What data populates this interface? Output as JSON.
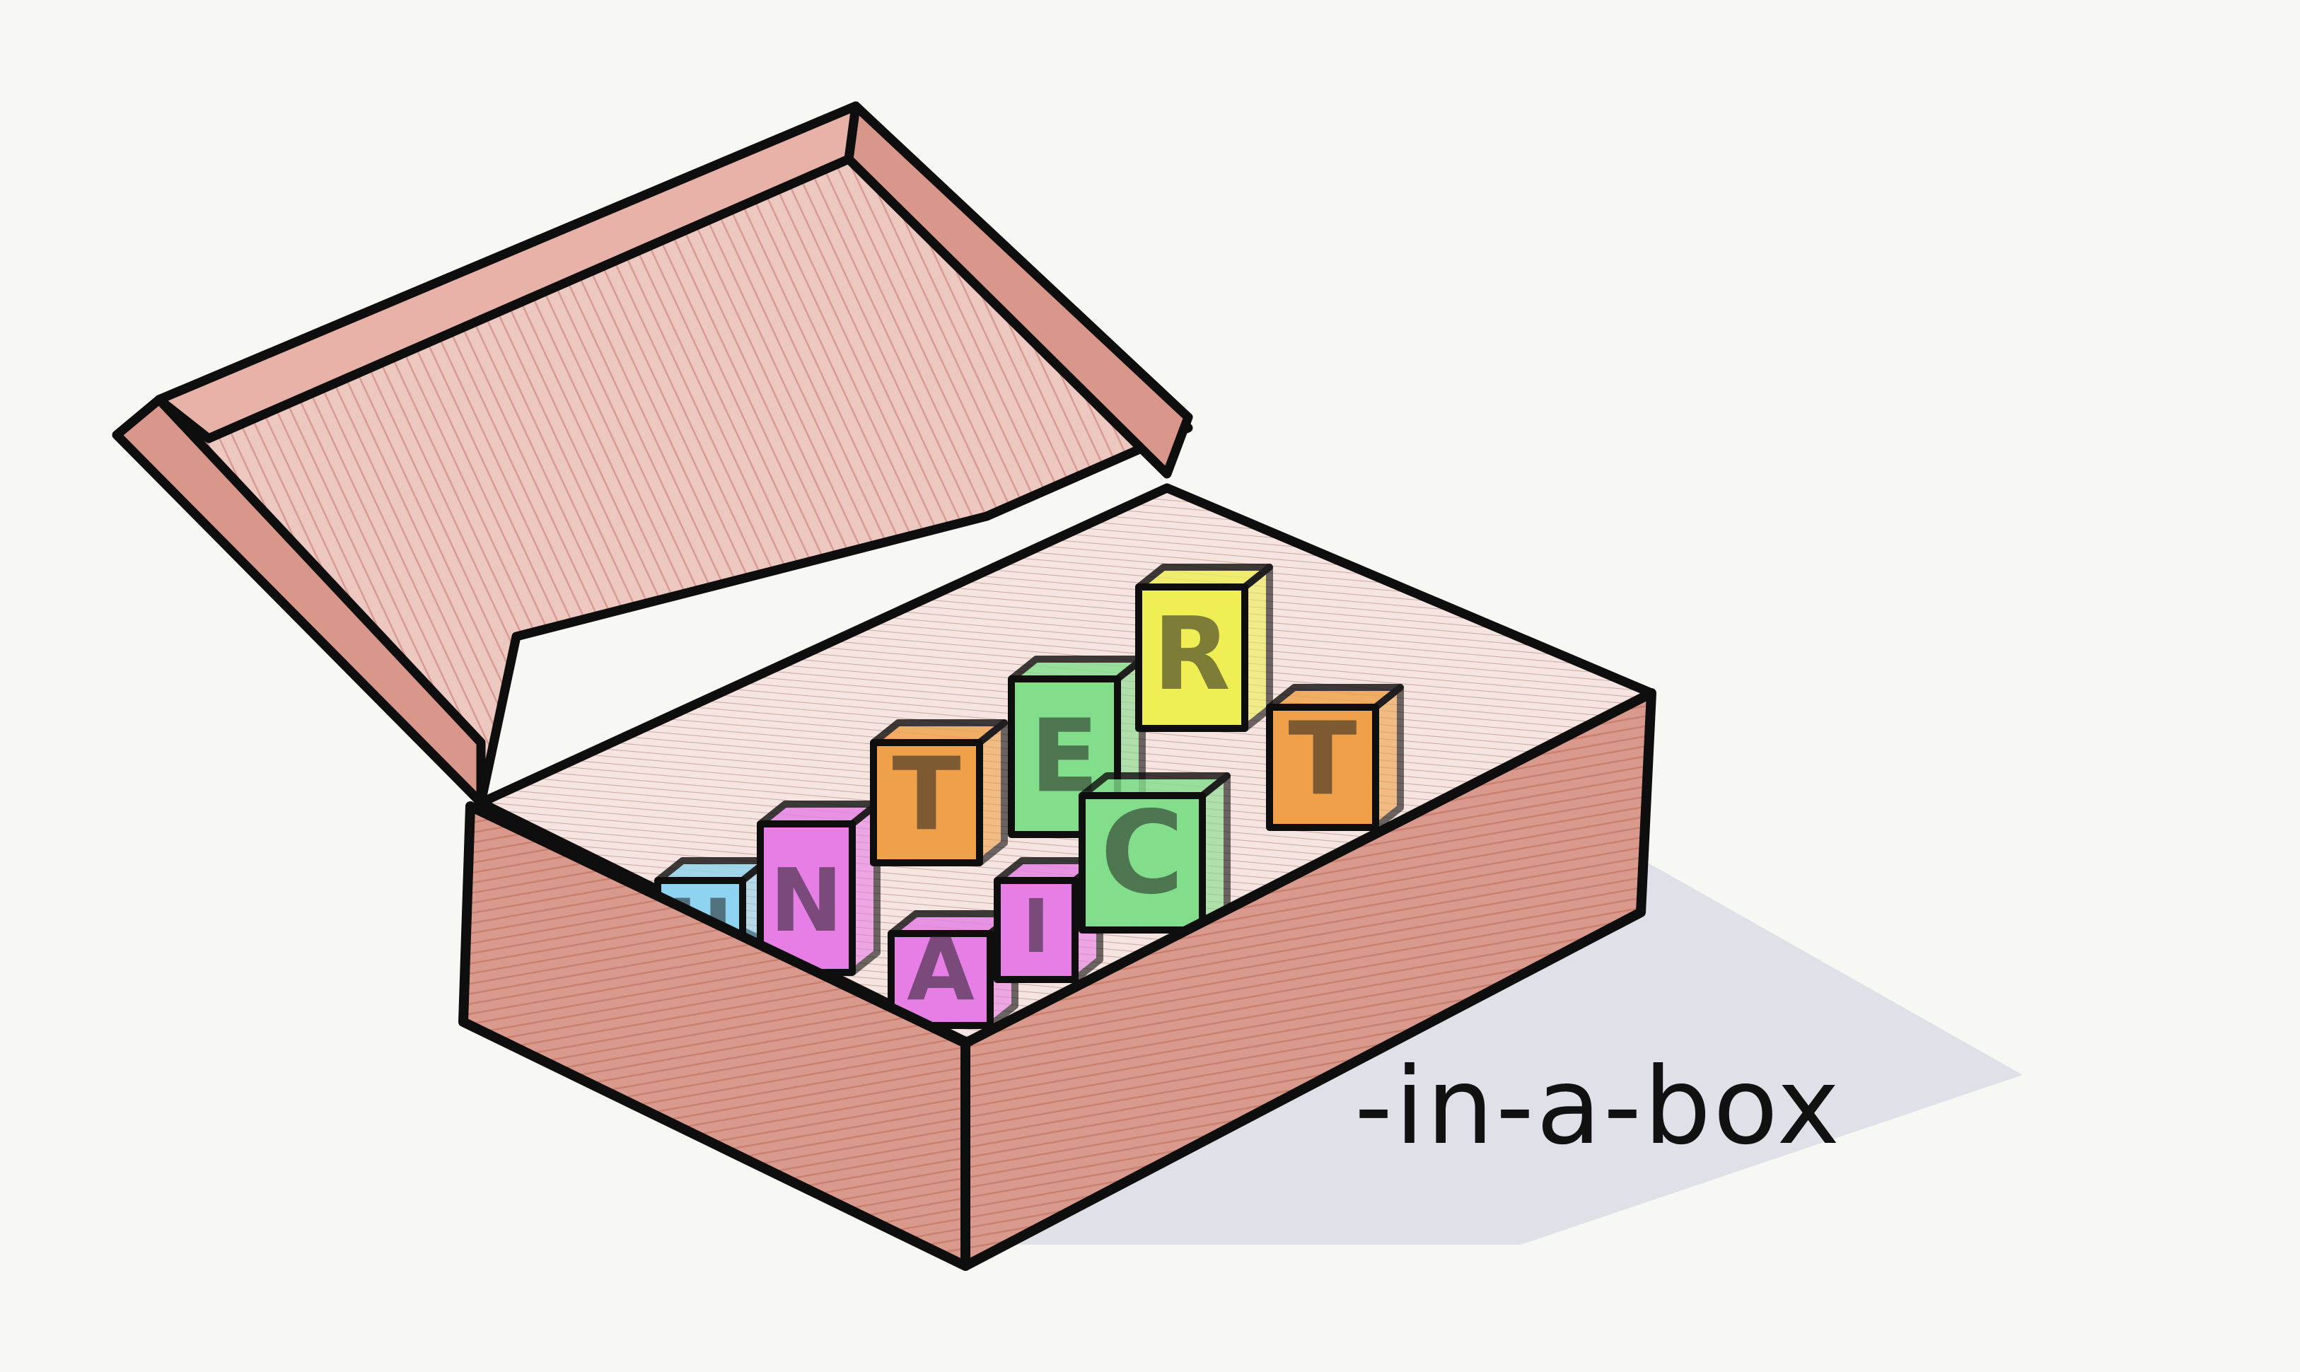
{
  "caption": "-in-a-box",
  "illustration": {
    "box": {
      "line_color": "#0e0e0e",
      "fill_color": "#e2a8a0",
      "lid_fill": "#f2d6d0",
      "inner_fill": "#f0dcd6",
      "shadow_color": "#d4d4df"
    },
    "letters": [
      {
        "glyph": "U",
        "color": "#8ed3ef",
        "icon": "cyan-block-letter-icon"
      },
      {
        "glyph": "N",
        "color": "#e67ee6",
        "icon": "magenta-block-letter-icon"
      },
      {
        "glyph": "T",
        "color": "#f0a048",
        "icon": "orange-block-letter-icon"
      },
      {
        "glyph": "E",
        "color": "#82de8b",
        "icon": "green-block-letter-icon"
      },
      {
        "glyph": "R",
        "color": "#efee55",
        "icon": "yellow-block-letter-icon"
      },
      {
        "glyph": "T",
        "color": "#f0a048",
        "icon": "orange-block-letter-icon"
      },
      {
        "glyph": "A",
        "color": "#e67ee6",
        "icon": "magenta-block-letter-icon"
      },
      {
        "glyph": "I",
        "color": "#e67ee6",
        "icon": "magenta-block-letter-icon"
      },
      {
        "glyph": "C",
        "color": "#82de8b",
        "icon": "green-block-letter-icon"
      }
    ]
  }
}
